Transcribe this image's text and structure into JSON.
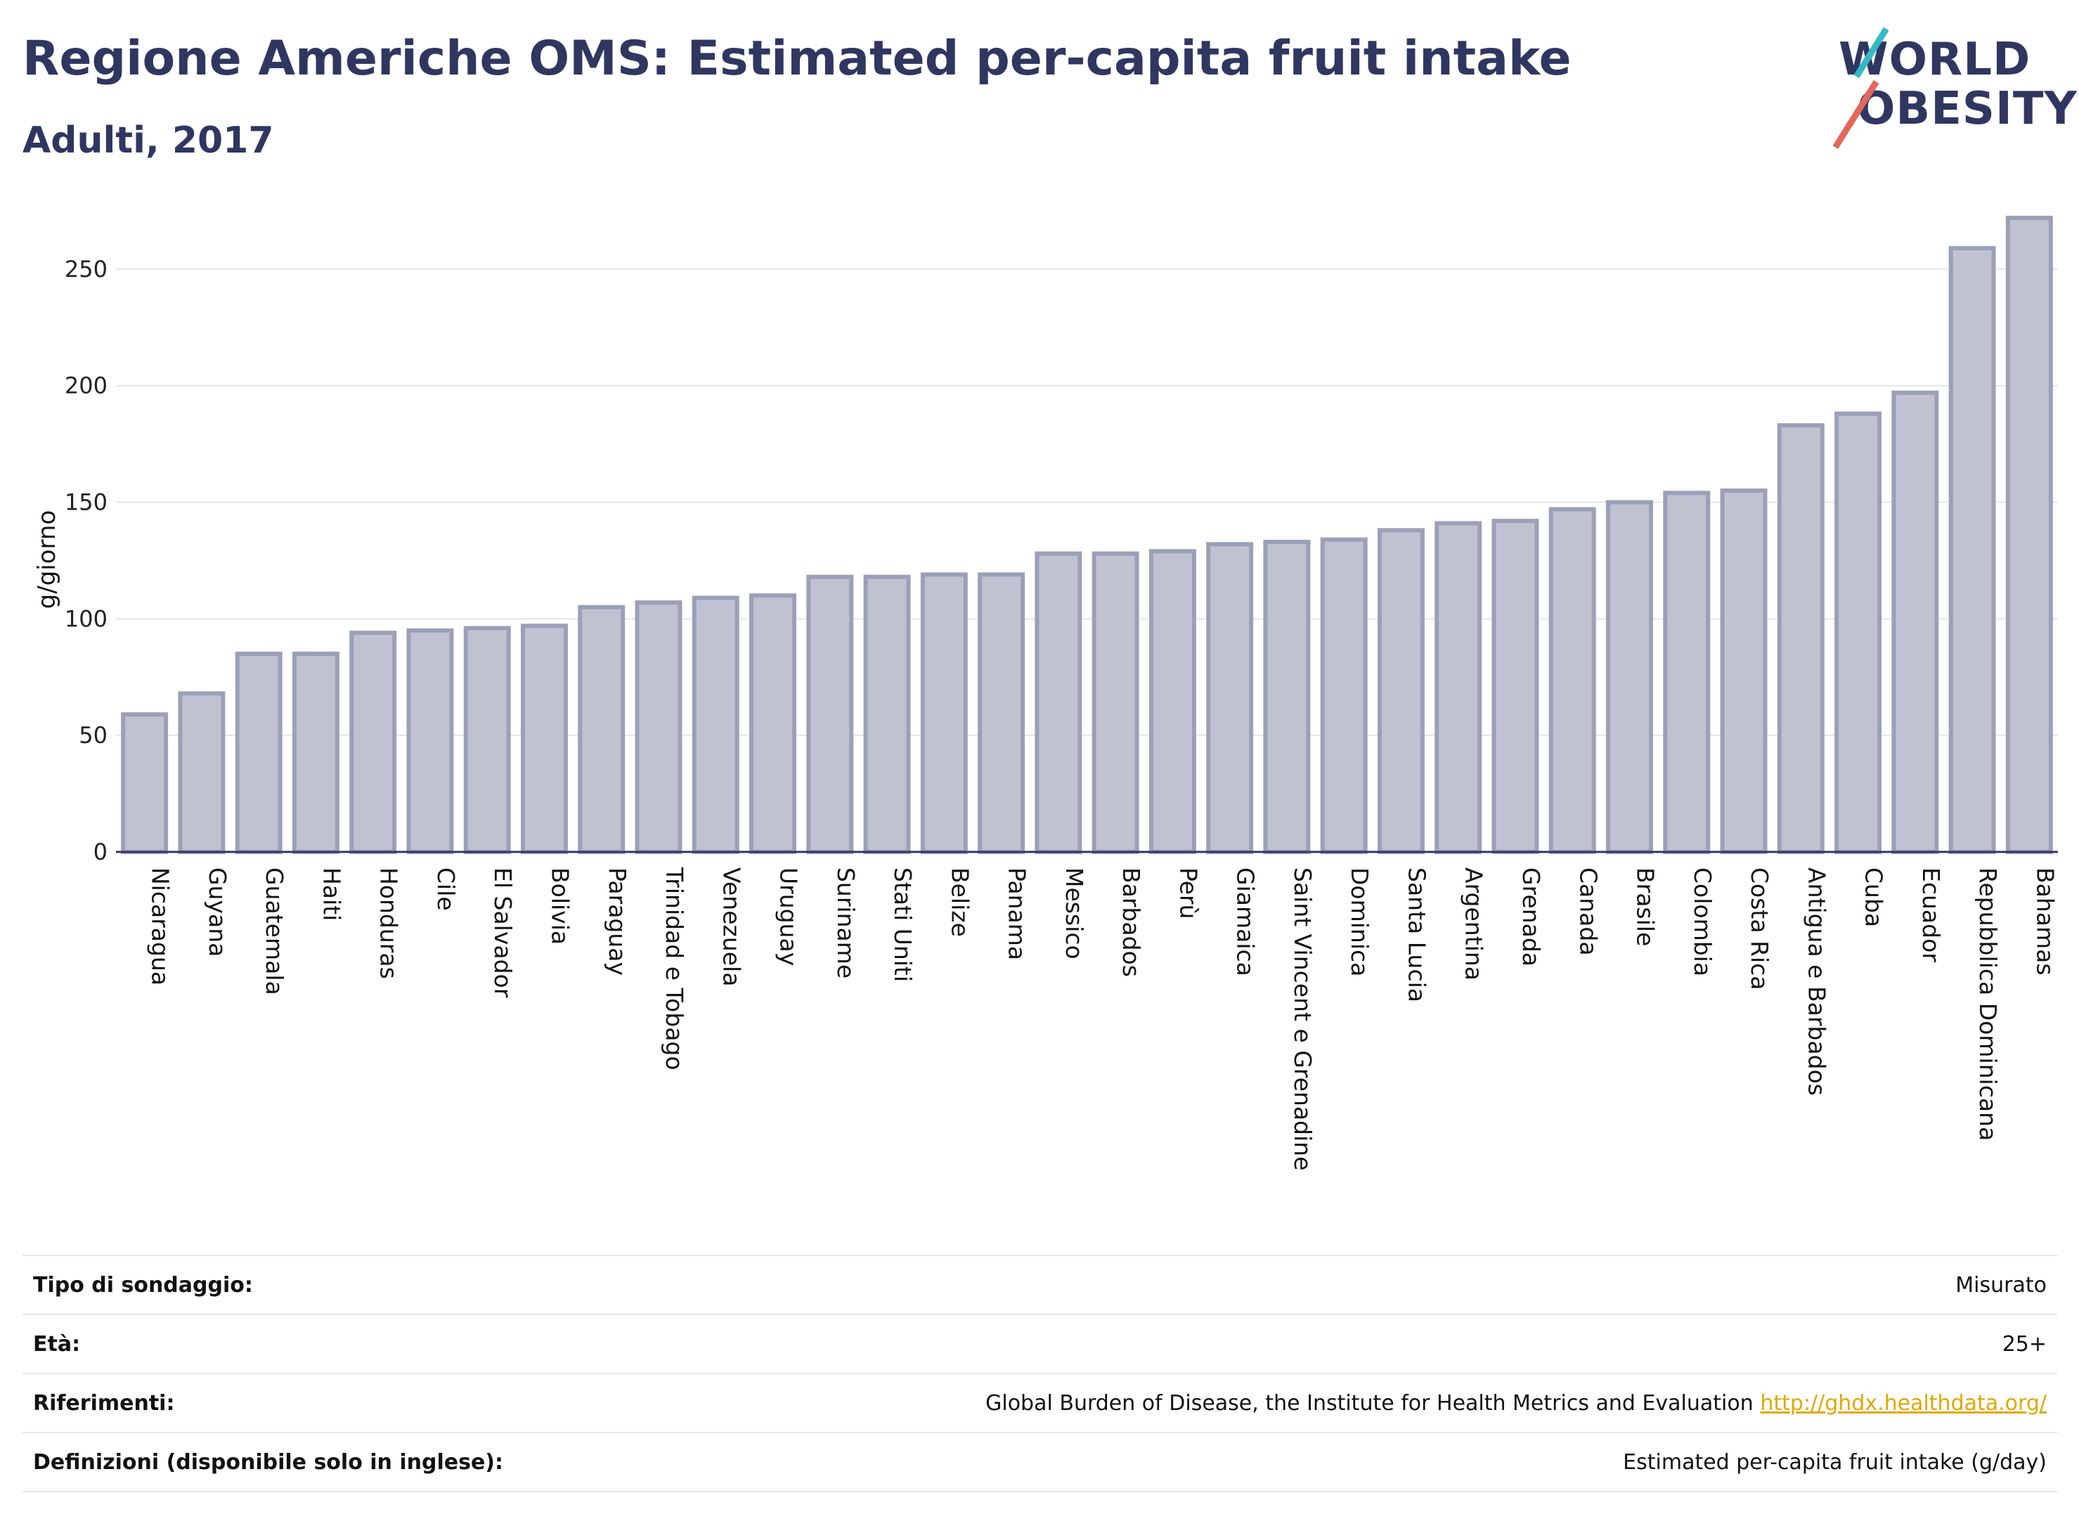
{
  "header": {
    "title": "Regione Americhe OMS: Estimated per-capita fruit intake",
    "subtitle": "Adulti, 2017"
  },
  "logo": {
    "line1": "WORLD",
    "line2": "OBESITY",
    "colors": {
      "text": "#2f3761",
      "teal": "#35b9c6",
      "coral": "#e2685b"
    }
  },
  "chart_data": {
    "type": "bar",
    "ylabel": "g/giorno",
    "xlabel": "",
    "ylim": [
      0,
      275
    ],
    "yticks": [
      0,
      50,
      100,
      150,
      200,
      250
    ],
    "grid": true,
    "bar_fill": "#bfc2d1",
    "bar_stroke": "#9ba0b8",
    "categories": [
      "Nicaragua",
      "Guyana",
      "Guatemala",
      "Haiti",
      "Honduras",
      "Cile",
      "El Salvador",
      "Bolivia",
      "Paraguay",
      "Trinidad e Tobago",
      "Venezuela",
      "Uruguay",
      "Suriname",
      "Stati Uniti",
      "Belize",
      "Panama",
      "Messico",
      "Barbados",
      "Perù",
      "Giamaica",
      "Saint Vincent e Grenadine",
      "Dominica",
      "Santa Lucia",
      "Argentina",
      "Grenada",
      "Canada",
      "Brasile",
      "Colombia",
      "Costa Rica",
      "Antigua e Barbados",
      "Cuba",
      "Ecuador",
      "Repubblica Dominicana",
      "Bahamas"
    ],
    "values": [
      59,
      68,
      85,
      85,
      94,
      95,
      96,
      97,
      105,
      107,
      109,
      110,
      118,
      118,
      119,
      119,
      128,
      128,
      129,
      132,
      133,
      134,
      138,
      141,
      142,
      147,
      150,
      154,
      155,
      183,
      188,
      197,
      259,
      272
    ]
  },
  "info": {
    "rows": [
      {
        "label": "Tipo di sondaggio:",
        "value": "Misurato"
      },
      {
        "label": "Età:",
        "value": "25+"
      },
      {
        "label": "Riferimenti:",
        "value": "Global Burden of Disease, the Institute for Health Metrics and Evaluation",
        "link": "http://ghdx.healthdata.org/"
      },
      {
        "label": "Definizioni (disponibile solo in inglese):",
        "value": "Estimated per-capita fruit intake (g/day)"
      }
    ]
  }
}
